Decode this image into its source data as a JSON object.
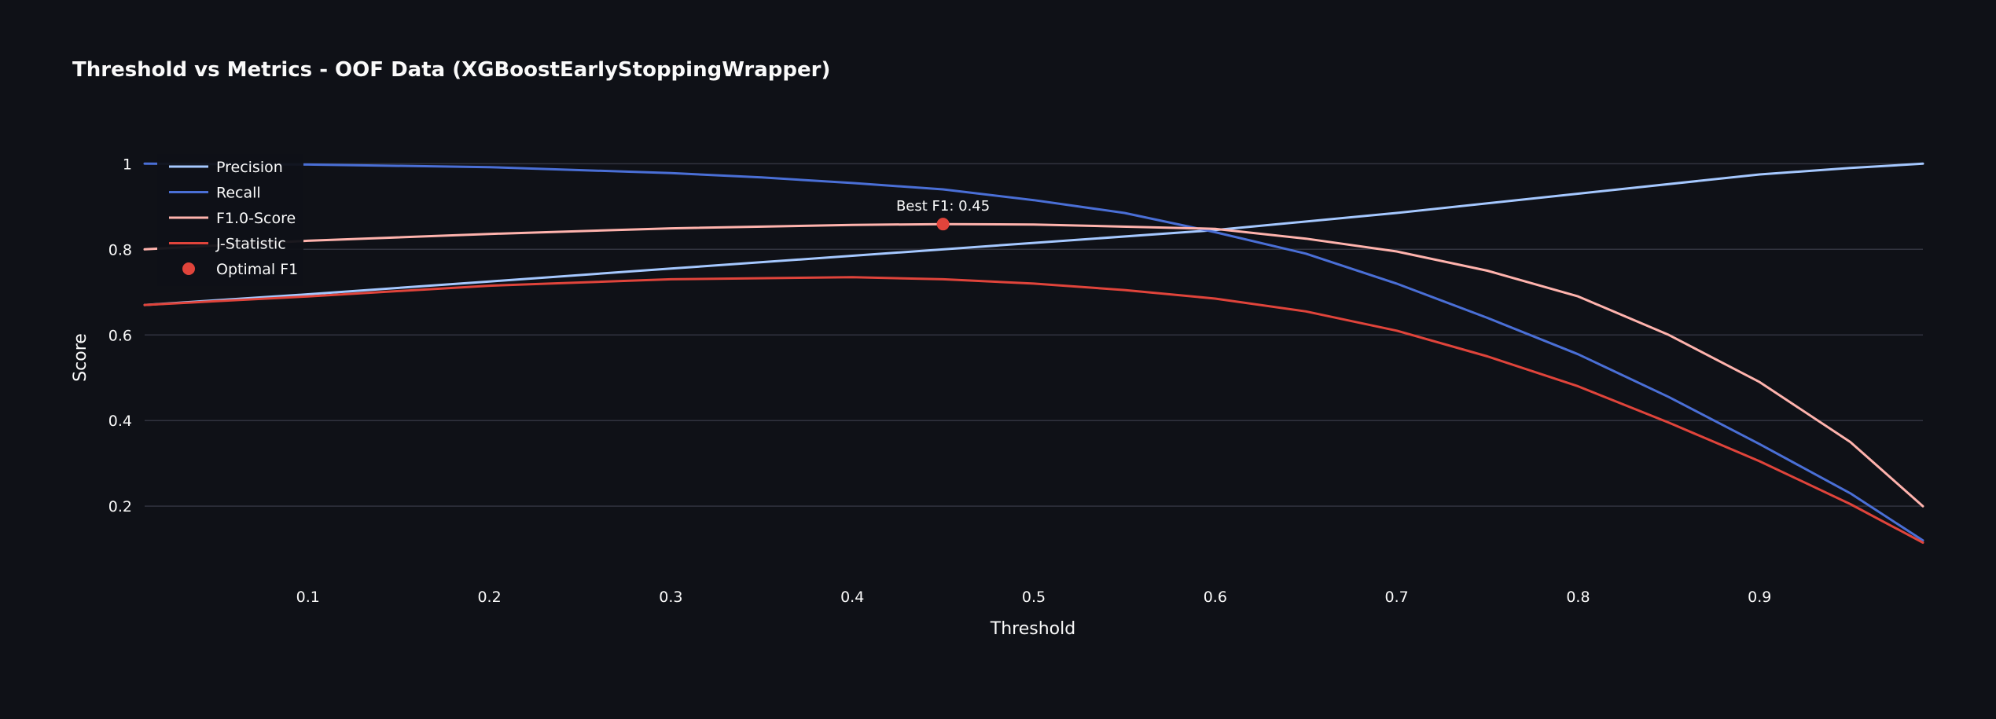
{
  "chart_data": {
    "type": "line",
    "title": "Threshold vs Metrics - OOF Data (XGBoostEarlyStoppingWrapper)",
    "xlabel": "Threshold",
    "ylabel": "Score",
    "xlim": [
      0.01,
      0.99
    ],
    "ylim": [
      0.07,
      1.03
    ],
    "x_ticks": [
      0.1,
      0.2,
      0.3,
      0.4,
      0.5,
      0.6,
      0.7,
      0.8,
      0.9
    ],
    "x_tick_labels": [
      "0.1",
      "0.2",
      "0.3",
      "0.4",
      "0.5",
      "0.6",
      "0.7",
      "0.8",
      "0.9"
    ],
    "y_ticks": [
      0.2,
      0.4,
      0.6,
      0.8,
      1.0
    ],
    "y_tick_labels": [
      "0.2",
      "0.4",
      "0.6",
      "0.8",
      "1"
    ],
    "grid": true,
    "legend_position": "top-left",
    "series": [
      {
        "name": "Precision",
        "color": "#a5c8ff",
        "x": [
          0.01,
          0.1,
          0.2,
          0.3,
          0.4,
          0.5,
          0.6,
          0.7,
          0.8,
          0.9,
          0.95,
          0.99
        ],
        "y": [
          0.67,
          0.695,
          0.725,
          0.755,
          0.785,
          0.815,
          0.845,
          0.885,
          0.93,
          0.975,
          0.99,
          1.0
        ]
      },
      {
        "name": "Recall",
        "color": "#4a6fd6",
        "x": [
          0.01,
          0.1,
          0.2,
          0.3,
          0.35,
          0.4,
          0.45,
          0.5,
          0.55,
          0.6,
          0.65,
          0.7,
          0.75,
          0.8,
          0.85,
          0.9,
          0.95,
          0.99
        ],
        "y": [
          1.0,
          0.998,
          0.992,
          0.978,
          0.968,
          0.955,
          0.94,
          0.915,
          0.885,
          0.84,
          0.79,
          0.72,
          0.64,
          0.555,
          0.455,
          0.345,
          0.23,
          0.12
        ]
      },
      {
        "name": "F1.0-Score",
        "color": "#ffb3ad",
        "x": [
          0.01,
          0.1,
          0.2,
          0.3,
          0.4,
          0.45,
          0.5,
          0.6,
          0.65,
          0.7,
          0.75,
          0.8,
          0.85,
          0.9,
          0.95,
          0.99
        ],
        "y": [
          0.8,
          0.82,
          0.836,
          0.849,
          0.857,
          0.859,
          0.858,
          0.848,
          0.825,
          0.795,
          0.75,
          0.69,
          0.6,
          0.49,
          0.35,
          0.2
        ]
      },
      {
        "name": "J-Statistic",
        "color": "#e0443b",
        "x": [
          0.01,
          0.1,
          0.2,
          0.3,
          0.4,
          0.45,
          0.5,
          0.55,
          0.6,
          0.65,
          0.7,
          0.75,
          0.8,
          0.85,
          0.9,
          0.95,
          0.99
        ],
        "y": [
          0.67,
          0.69,
          0.715,
          0.73,
          0.735,
          0.73,
          0.72,
          0.705,
          0.685,
          0.655,
          0.61,
          0.55,
          0.48,
          0.395,
          0.305,
          0.205,
          0.115
        ]
      }
    ],
    "optimal_point": {
      "name": "Optimal F1",
      "color": "#e0443b",
      "x": 0.45,
      "y": 0.859,
      "label": "Best F1: 0.45"
    }
  }
}
